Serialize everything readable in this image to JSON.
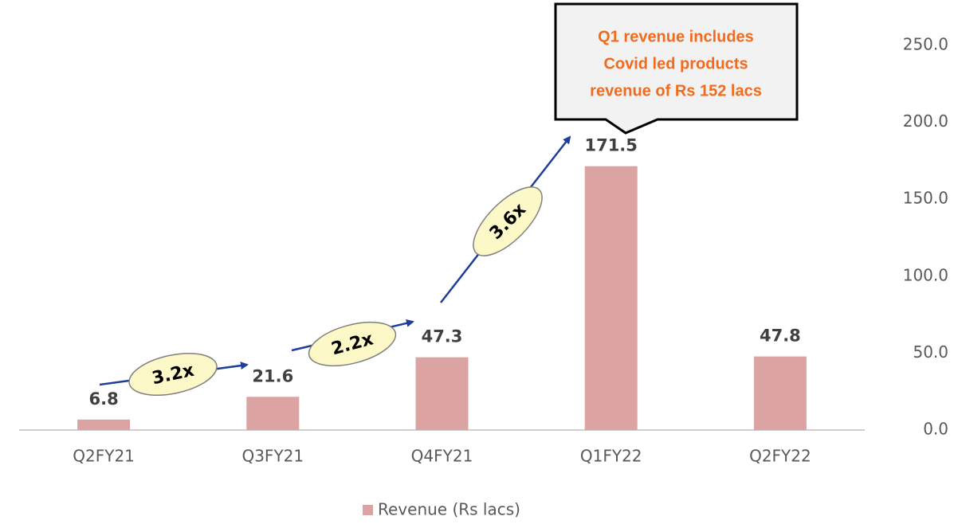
{
  "chart_data": {
    "type": "bar",
    "categories": [
      "Q2FY21",
      "Q3FY21",
      "Q4FY21",
      "Q1FY22",
      "Q2FY22"
    ],
    "series": [
      {
        "name": "Revenue (Rs lacs)",
        "color": "#dca3a3",
        "values": [
          6.8,
          21.6,
          47.3,
          171.5,
          47.8
        ]
      }
    ],
    "ylim": [
      0,
      250
    ],
    "yticks": [
      {
        "value": 0,
        "label": "0.0"
      },
      {
        "value": 50,
        "label": "50.0"
      },
      {
        "value": 100,
        "label": "100.0"
      },
      {
        "value": 150,
        "label": "150.0"
      },
      {
        "value": 200,
        "label": "200.0"
      },
      {
        "value": 250,
        "label": "250.0"
      }
    ],
    "y_axis_side": "right",
    "legend": "bottom",
    "growth_labels": [
      "3.2x",
      "2.2x",
      "3.6x"
    ],
    "callout": [
      "Q1 revenue includes",
      "Covid led products",
      "revenue of Rs 152 lacs"
    ]
  }
}
